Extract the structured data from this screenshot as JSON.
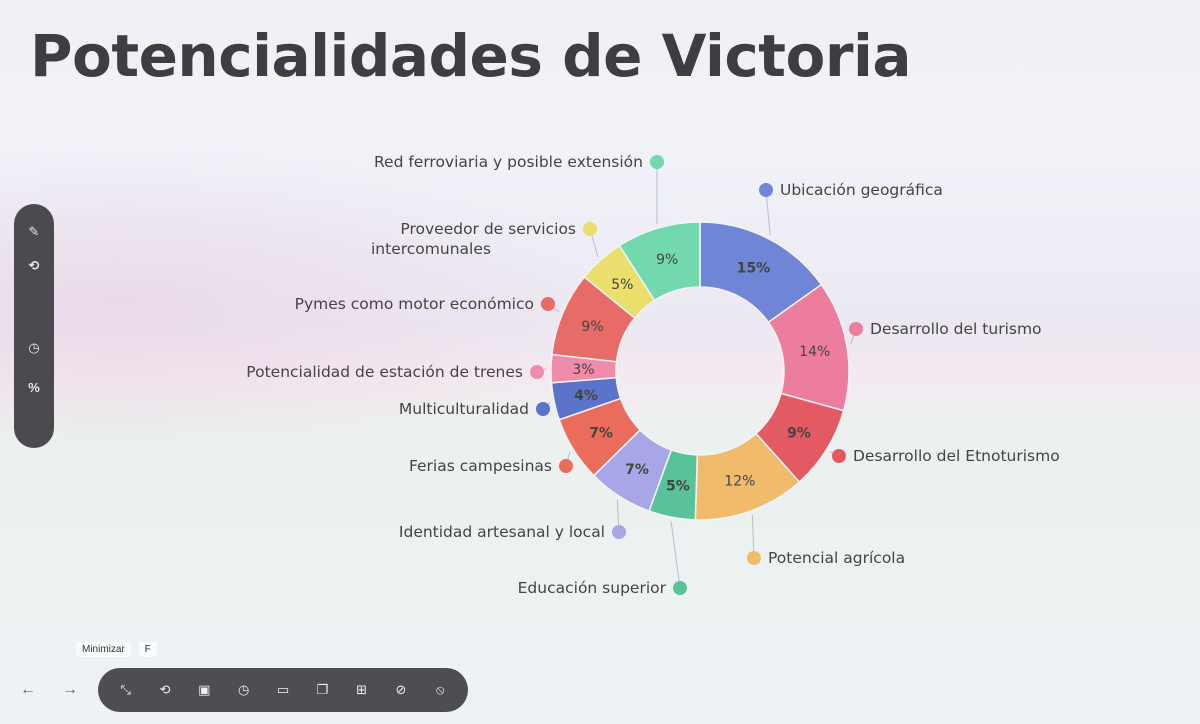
{
  "title": "Potencialidades de Victoria",
  "toolbar": {
    "tooltip_label": "Minimizar",
    "tooltip_key": "F"
  },
  "chart_data": {
    "type": "pie",
    "donut": true,
    "title": "Potencialidades de Victoria",
    "categories": [
      "Ubicación geográfica",
      "Desarrollo del turismo",
      "Desarrollo del Etnoturismo",
      "Potencial agrícola",
      "Educación superior",
      "Identidad artesanal y local",
      "Ferias campesinas",
      "Multiculturalidad",
      "Potencialidad de estación de trenes",
      "Pymes como motor económico",
      "Proveedor de servicios intercomunales",
      "Red ferroviaria y posible extensión"
    ],
    "values": [
      15,
      14,
      9,
      12,
      5,
      7,
      7,
      4,
      3,
      9,
      5,
      9
    ],
    "labels": [
      "15%",
      "14%",
      "9%",
      "12%",
      "5%",
      "7%",
      "7%",
      "4%",
      "3%",
      "9%",
      "5%",
      "9%"
    ],
    "colors": [
      "#6f86d6",
      "#ec7d9d",
      "#e45a62",
      "#f0bc6c",
      "#58c39a",
      "#a7a6e6",
      "#ea6c5a",
      "#5b74c9",
      "#f08caa",
      "#e76b66",
      "#eadf6c",
      "#72d8ae"
    ],
    "legend_placement": "callouts"
  }
}
